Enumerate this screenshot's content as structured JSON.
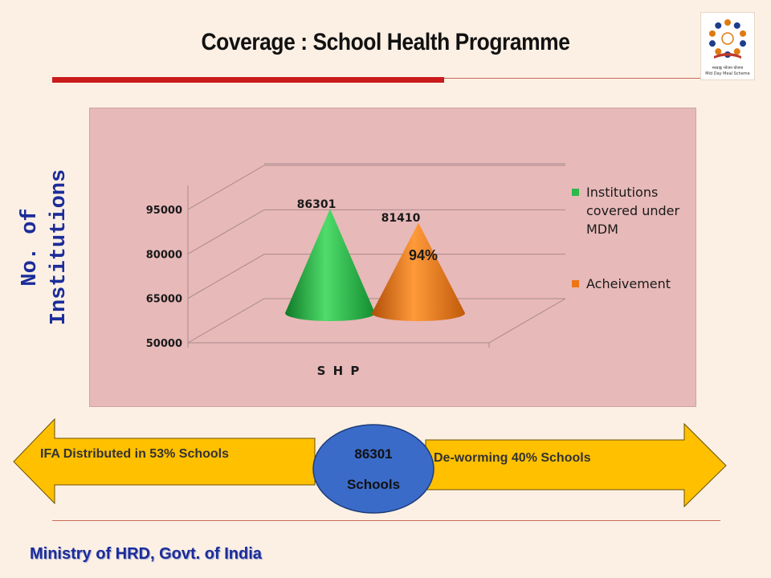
{
  "slide": {
    "title": "Coverage : School Health Programme",
    "side_label": "No. of Institutions",
    "footer": "Ministry of HRD, Govt. of India",
    "logo": {
      "line1": "मध्याह्न भोजन योजना",
      "line2": "Mid Day Meal Scheme",
      "icon": "people-circle-book-logo"
    }
  },
  "chart_data": {
    "type": "bar",
    "shape": "cone",
    "categories": [
      "S H P"
    ],
    "series": [
      {
        "name": "Institutions covered under MDM",
        "values": [
          86301
        ],
        "color": "#2eb84b",
        "data_label": "86301"
      },
      {
        "name": "Acheivement",
        "values": [
          81410
        ],
        "color": "#ee7417",
        "data_label": "81410"
      }
    ],
    "annotation": "94%",
    "y_ticks": [
      "95000",
      "80000",
      "65000",
      "50000"
    ],
    "ylim": [
      50000,
      95000
    ],
    "legend_position": "right",
    "background": "#e8b9b9"
  },
  "arrows": {
    "left_text": "IFA Distributed in 53% Schools",
    "right_text": "De-worming 40% Schools",
    "center_value": "86301",
    "center_unit": "Schools",
    "arrow_color": "#ffc000",
    "circle_color": "#3a6bc8"
  },
  "colors": {
    "title_bar": "#c91b1b",
    "accent_text": "#1b2c9a"
  }
}
